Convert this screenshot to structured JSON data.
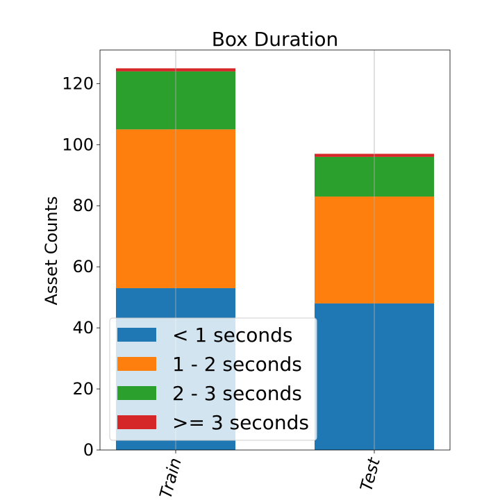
{
  "chart_data": {
    "type": "bar",
    "stacked": true,
    "title": "Box Duration",
    "xlabel": "",
    "ylabel": "Asset Counts",
    "categories": [
      "Train",
      "Test"
    ],
    "series": [
      {
        "name": "< 1 seconds",
        "color": "#1f77b4",
        "values": [
          53,
          48
        ]
      },
      {
        "name": "1 - 2 seconds",
        "color": "#ff7f0e",
        "values": [
          52,
          35
        ]
      },
      {
        "name": "2 - 3 seconds",
        "color": "#2ca02c",
        "values": [
          19,
          13
        ]
      },
      {
        "name": ">= 3 seconds",
        "color": "#d62728",
        "values": [
          1,
          1
        ]
      }
    ],
    "ylim": [
      0,
      131
    ],
    "yticks": [
      0,
      20,
      40,
      60,
      80,
      100,
      120
    ],
    "grid": "x",
    "legend_position": "lower-left",
    "xtick_rotation": 75
  }
}
